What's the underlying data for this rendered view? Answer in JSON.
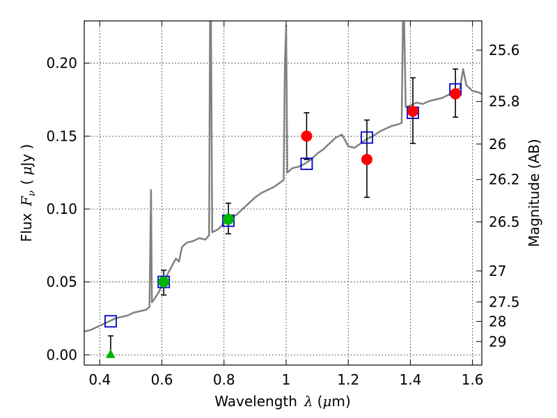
{
  "chart_data": {
    "type": "scatter",
    "xlabel": "Wavelength",
    "xlabel_symbol": "λ",
    "xlabel_unit_open": "(",
    "xlabel_unit_mu": "μ",
    "xlabel_unit_rest": "m)",
    "ylabel_left": "Flux",
    "ylabel_left_symbol": "F",
    "ylabel_left_sub": "ν",
    "ylabel_left_unit_open": "(",
    "ylabel_left_unit_mu": "μ",
    "ylabel_left_unit_rest": "Jy )",
    "ylabel_right": "Magnitude (AB)",
    "xlim": [
      0.35,
      1.63
    ],
    "ylim": [
      -0.007,
      0.229
    ],
    "x_ticks": [
      {
        "value": 0.4,
        "label": "0.4"
      },
      {
        "value": 0.6,
        "label": "0.6"
      },
      {
        "value": 0.8,
        "label": "0.8"
      },
      {
        "value": 1.0,
        "label": "1"
      },
      {
        "value": 1.2,
        "label": "1.2"
      },
      {
        "value": 1.4,
        "label": "1.4"
      },
      {
        "value": 1.6,
        "label": "1.6"
      }
    ],
    "y_ticks": [
      {
        "value": 0.0,
        "label": "0.00"
      },
      {
        "value": 0.05,
        "label": "0.05"
      },
      {
        "value": 0.1,
        "label": "0.10"
      },
      {
        "value": 0.15,
        "label": "0.15"
      },
      {
        "value": 0.2,
        "label": "0.20"
      }
    ],
    "mag_ticks": [
      {
        "mag": 25.6,
        "label": "25.6"
      },
      {
        "mag": 25.8,
        "label": "25.8"
      },
      {
        "mag": 26.0,
        "label": "26"
      },
      {
        "mag": 26.2,
        "label": "26.2"
      },
      {
        "mag": 26.5,
        "label": "26.5"
      },
      {
        "mag": 27.0,
        "label": "27"
      },
      {
        "mag": 27.5,
        "label": "27.5"
      },
      {
        "mag": 28.0,
        "label": "28"
      },
      {
        "mag": 29.0,
        "label": "29"
      }
    ],
    "grid": true,
    "model_spectrum": [
      [
        0.35,
        0.016
      ],
      [
        0.37,
        0.017
      ],
      [
        0.39,
        0.019
      ],
      [
        0.41,
        0.021
      ],
      [
        0.43,
        0.023
      ],
      [
        0.45,
        0.025
      ],
      [
        0.47,
        0.026
      ],
      [
        0.49,
        0.027
      ],
      [
        0.51,
        0.029
      ],
      [
        0.53,
        0.03
      ],
      [
        0.55,
        0.031
      ],
      [
        0.56,
        0.033
      ],
      [
        0.565,
        0.113
      ],
      [
        0.568,
        0.036
      ],
      [
        0.575,
        0.038
      ],
      [
        0.59,
        0.043
      ],
      [
        0.605,
        0.05
      ],
      [
        0.62,
        0.056
      ],
      [
        0.635,
        0.062
      ],
      [
        0.645,
        0.066
      ],
      [
        0.655,
        0.064
      ],
      [
        0.665,
        0.074
      ],
      [
        0.68,
        0.077
      ],
      [
        0.7,
        0.078
      ],
      [
        0.72,
        0.08
      ],
      [
        0.74,
        0.079
      ],
      [
        0.752,
        0.082
      ],
      [
        0.755,
        0.23
      ],
      [
        0.758,
        0.23
      ],
      [
        0.762,
        0.084
      ],
      [
        0.78,
        0.086
      ],
      [
        0.8,
        0.09
      ],
      [
        0.82,
        0.094
      ],
      [
        0.84,
        0.096
      ],
      [
        0.86,
        0.1
      ],
      [
        0.88,
        0.104
      ],
      [
        0.9,
        0.108
      ],
      [
        0.92,
        0.111
      ],
      [
        0.94,
        0.113
      ],
      [
        0.96,
        0.115
      ],
      [
        0.98,
        0.118
      ],
      [
        0.992,
        0.12
      ],
      [
        0.996,
        0.2
      ],
      [
        1.0,
        0.226
      ],
      [
        1.004,
        0.125
      ],
      [
        1.02,
        0.128
      ],
      [
        1.04,
        0.129
      ],
      [
        1.06,
        0.131
      ],
      [
        1.08,
        0.134
      ],
      [
        1.1,
        0.138
      ],
      [
        1.12,
        0.141
      ],
      [
        1.14,
        0.145
      ],
      [
        1.16,
        0.149
      ],
      [
        1.18,
        0.151
      ],
      [
        1.2,
        0.143
      ],
      [
        1.22,
        0.142
      ],
      [
        1.24,
        0.145
      ],
      [
        1.26,
        0.148
      ],
      [
        1.28,
        0.15
      ],
      [
        1.3,
        0.153
      ],
      [
        1.32,
        0.155
      ],
      [
        1.34,
        0.157
      ],
      [
        1.36,
        0.158
      ],
      [
        1.372,
        0.159
      ],
      [
        1.376,
        0.228
      ],
      [
        1.38,
        0.228
      ],
      [
        1.385,
        0.17
      ],
      [
        1.4,
        0.171
      ],
      [
        1.42,
        0.173
      ],
      [
        1.44,
        0.172
      ],
      [
        1.46,
        0.174
      ],
      [
        1.48,
        0.175
      ],
      [
        1.5,
        0.176
      ],
      [
        1.52,
        0.178
      ],
      [
        1.54,
        0.18
      ],
      [
        1.56,
        0.183
      ],
      [
        1.57,
        0.196
      ],
      [
        1.58,
        0.185
      ],
      [
        1.6,
        0.181
      ],
      [
        1.62,
        0.18
      ],
      [
        1.63,
        0.179
      ]
    ],
    "model_points": [
      {
        "x": 0.435,
        "y": 0.023
      },
      {
        "x": 0.606,
        "y": 0.05
      },
      {
        "x": 0.814,
        "y": 0.092
      },
      {
        "x": 1.066,
        "y": 0.131
      },
      {
        "x": 1.26,
        "y": 0.149
      },
      {
        "x": 1.408,
        "y": 0.166
      },
      {
        "x": 1.545,
        "y": 0.182
      }
    ],
    "observed_ground": [
      {
        "x": 0.435,
        "y": 0.0,
        "yerr_lo": 0.0,
        "yerr_hi": 0.013,
        "marker": "triangle"
      },
      {
        "x": 0.606,
        "y": 0.05,
        "yerr_lo": 0.009,
        "yerr_hi": 0.008,
        "marker": "circle"
      },
      {
        "x": 0.814,
        "y": 0.093,
        "yerr_lo": 0.01,
        "yerr_hi": 0.011,
        "marker": "circle"
      }
    ],
    "observed_space": [
      {
        "x": 1.066,
        "y": 0.15,
        "yerr_lo": 0.016,
        "yerr_hi": 0.016
      },
      {
        "x": 1.26,
        "y": 0.134,
        "yerr_lo": 0.026,
        "yerr_hi": 0.027
      },
      {
        "x": 1.408,
        "y": 0.167,
        "yerr_lo": 0.022,
        "yerr_hi": 0.023
      },
      {
        "x": 1.545,
        "y": 0.179,
        "yerr_lo": 0.016,
        "yerr_hi": 0.017
      }
    ],
    "colors": {
      "spectrum": "#808080",
      "model_box": "#0000cc",
      "ground": "#00b400",
      "space": "#ff0000",
      "errorbar": "#000000",
      "grid": "#000000"
    }
  }
}
